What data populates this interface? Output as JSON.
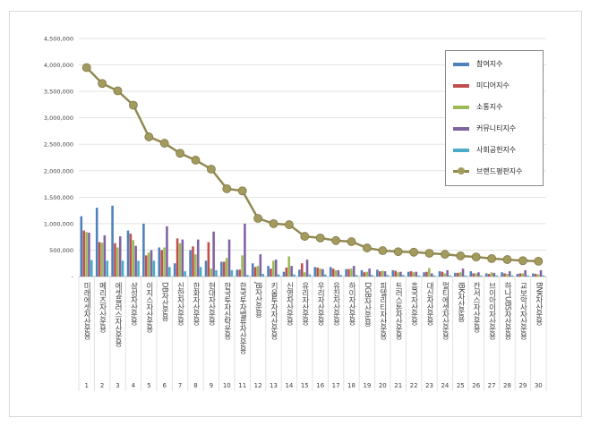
{
  "chart_data": {
    "type": "bar",
    "title": "",
    "xlabel": "",
    "ylabel": "",
    "ylim": [
      0,
      4500000
    ],
    "yticks": [
      "-",
      "500,000",
      "1,000,000",
      "1,500,000",
      "2,000,000",
      "2,500,000",
      "3,000,000",
      "3,500,000",
      "4,000,000",
      "4,500,000"
    ],
    "grid": true,
    "legend_position": "top-right",
    "categories": [
      "미래에셋자산운용",
      "메리츠자산운용",
      "에셋플러스자산운용",
      "삼성자산운용",
      "이지스자산운용",
      "DB자산운용",
      "신한자산운용",
      "한화자산운용",
      "현대자산운용",
      "한국투자신탁운용",
      "한국투자밸류자산운용",
      "JB자산운용",
      "키움투자자산운용",
      "신영자산운용",
      "유리자산운용",
      "우리자산운용",
      "유진자산운용",
      "하이자산운용",
      "DGB자산운용",
      "피델리티자산운용",
      "트러스톤자산운용",
      "흥국자산운용",
      "대신자산운용",
      "멀티에셋자산운용",
      "IBK자산운용",
      "칸서스자산운용",
      "브이아이자산운용",
      "하나UBS자산운용",
      "교보악사자산운용",
      "BNK자산운용"
    ],
    "ranks": [
      "1",
      "2",
      "3",
      "4",
      "5",
      "6",
      "7",
      "8",
      "9",
      "10",
      "11",
      "12",
      "13",
      "14",
      "15",
      "16",
      "17",
      "18",
      "19",
      "20",
      "21",
      "22",
      "23",
      "24",
      "25",
      "26",
      "27",
      "28",
      "29",
      "30"
    ],
    "series": [
      {
        "name": "참여지수",
        "color": "#4f81bd",
        "type": "bar",
        "values": [
          1140000,
          1300000,
          1340000,
          870000,
          1000000,
          550000,
          250000,
          500000,
          300000,
          280000,
          130000,
          250000,
          200000,
          90000,
          130000,
          180000,
          180000,
          140000,
          120000,
          130000,
          120000,
          90000,
          80000,
          100000,
          70000,
          100000,
          60000,
          80000,
          50000,
          60000
        ]
      },
      {
        "name": "미디어지수",
        "color": "#c0504d",
        "type": "bar",
        "values": [
          870000,
          650000,
          630000,
          810000,
          400000,
          500000,
          720000,
          570000,
          650000,
          280000,
          130000,
          180000,
          150000,
          170000,
          250000,
          170000,
          150000,
          140000,
          80000,
          100000,
          110000,
          100000,
          90000,
          90000,
          70000,
          60000,
          50000,
          60000,
          60000,
          50000
        ]
      },
      {
        "name": "소통지수",
        "color": "#9bbb59",
        "type": "bar",
        "values": [
          840000,
          640000,
          550000,
          690000,
          450000,
          550000,
          630000,
          420000,
          150000,
          350000,
          400000,
          200000,
          300000,
          380000,
          80000,
          150000,
          120000,
          150000,
          90000,
          110000,
          80000,
          80000,
          160000,
          60000,
          80000,
          60000,
          80000,
          50000,
          60000,
          40000
        ]
      },
      {
        "name": "커뮤니티지수",
        "color": "#8064a2",
        "type": "bar",
        "values": [
          830000,
          780000,
          760000,
          580000,
          500000,
          950000,
          700000,
          700000,
          850000,
          700000,
          1000000,
          420000,
          320000,
          200000,
          320000,
          140000,
          120000,
          200000,
          150000,
          100000,
          90000,
          90000,
          60000,
          120000,
          150000,
          80000,
          70000,
          100000,
          120000,
          120000
        ]
      },
      {
        "name": "사회공헌지수",
        "color": "#4bacc6",
        "type": "bar",
        "values": [
          310000,
          300000,
          300000,
          300000,
          300000,
          180000,
          100000,
          180000,
          120000,
          120000,
          30000,
          50000,
          40000,
          40000,
          40000,
          40000,
          30000,
          30000,
          30000,
          30000,
          30000,
          20000,
          20000,
          20000,
          20000,
          20000,
          20000,
          20000,
          20000,
          20000
        ]
      },
      {
        "name": "브랜드평판지수",
        "color": "#938953",
        "type": "line",
        "values": [
          3950000,
          3650000,
          3510000,
          3240000,
          2640000,
          2520000,
          2330000,
          2200000,
          2030000,
          1660000,
          1620000,
          1100000,
          1000000,
          980000,
          760000,
          730000,
          680000,
          660000,
          540000,
          490000,
          470000,
          460000,
          440000,
          420000,
          390000,
          370000,
          340000,
          320000,
          300000,
          290000
        ]
      }
    ]
  }
}
